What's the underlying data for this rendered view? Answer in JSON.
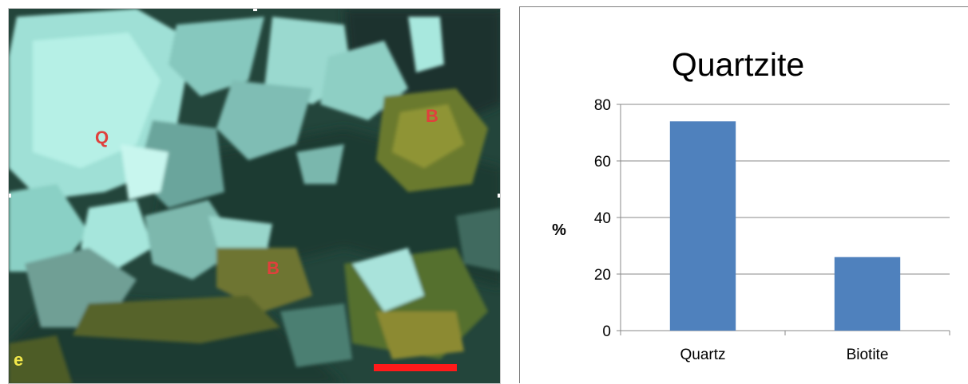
{
  "figure": {
    "micrograph_labels": [
      {
        "text": "Q",
        "color": "#e0403c"
      },
      {
        "text": "B",
        "color": "#e0403c"
      },
      {
        "text": "B",
        "color": "#e0403c"
      },
      {
        "text": "e",
        "color": "#f2e84a"
      }
    ],
    "scale_bar_color": "#ff1a1a"
  },
  "chart_data": {
    "type": "bar",
    "title": "Quartzite",
    "ylabel": "%",
    "xlabel": "",
    "categories": [
      "Quartz",
      "Biotite"
    ],
    "values": [
      74,
      26
    ],
    "ylim": [
      0,
      80
    ],
    "yticks": [
      "0",
      "20",
      "40",
      "60",
      "80"
    ],
    "grid": true,
    "bar_color": "#4f81bd",
    "legend": "none"
  }
}
